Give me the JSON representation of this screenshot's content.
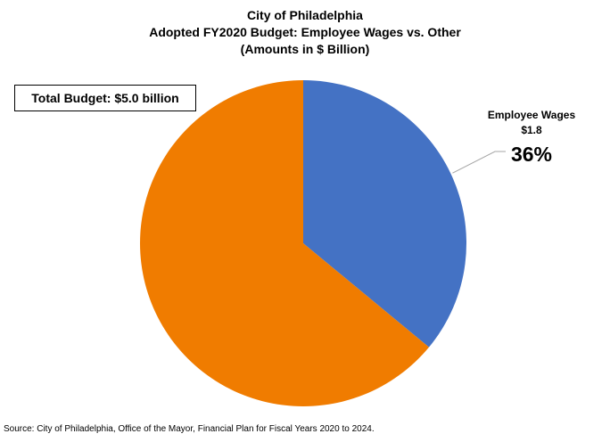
{
  "chart_data": {
    "type": "pie",
    "title": [
      "City of Philadelphia",
      "Adopted FY2020 Budget: Employee Wages vs. Other",
      "(Amounts in $ Billion)"
    ],
    "total_label": "Total Budget: $5.0 billion",
    "slices": [
      {
        "name": "Employee Wages",
        "value": 1.8,
        "value_label": "$1.8",
        "percent_label": "36%",
        "percent": 36,
        "color": "#4472C4",
        "labeled": true
      },
      {
        "name": "Other",
        "value": 3.2,
        "percent": 64,
        "color": "#F07C00",
        "labeled": false
      }
    ],
    "start": "12 o'clock",
    "direction": "clockwise",
    "source": "Source: City of Philadelphia, Office of the Mayor, Financial Plan for Fiscal Years 2020 to 2024."
  }
}
